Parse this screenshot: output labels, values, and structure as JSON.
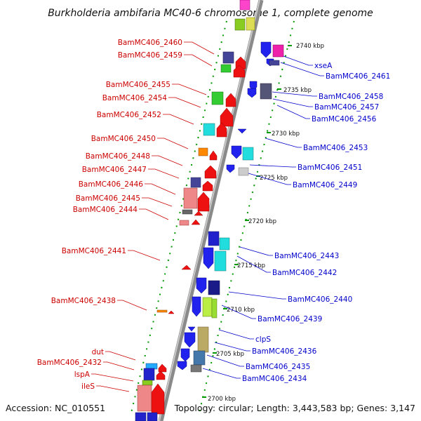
{
  "title": "Burkholderia ambifaria MC40-6 chromosome 1, complete genome",
  "accession": "Accession: NC_010551",
  "topology": "Topology: circular; Length: 3,443,583 bp; Genes: 3,147",
  "colors": {
    "forward_label": "#cc0000",
    "reverse_label": "#0000cc",
    "backbone": "#8a8a8a",
    "tick": "#009900"
  },
  "kbp_ticks": [
    "2740 kbp",
    "2735 kbp",
    "2730 kbp",
    "2725 kbp",
    "2720 kbp",
    "2715 kbp",
    "2710 kbp",
    "2705 kbp",
    "2700 kbp"
  ],
  "forward_genes": [
    "BamMC406_2460",
    "BamMC406_2459",
    "BamMC406_2455",
    "BamMC406_2454",
    "BamMC406_2452",
    "BamMC406_2450",
    "BamMC406_2448",
    "BamMC406_2447",
    "BamMC406_2446",
    "BamMC406_2445",
    "BamMC406_2444",
    "BamMC406_2441",
    "BamMC406_2438",
    "dut",
    "BamMC406_2432",
    "lspA",
    "ileS"
  ],
  "reverse_genes": [
    "xseA",
    "BamMC406_2461",
    "BamMC406_2458",
    "BamMC406_2457",
    "BamMC406_2456",
    "BamMC406_2453",
    "BamMC406_2451",
    "BamMC406_2449",
    "BamMC406_2443",
    "BamMC406_2442",
    "BamMC406_2440",
    "BamMC406_2439",
    "clpS",
    "BamMC406_2436",
    "BamMC406_2435",
    "BamMC406_2434"
  ]
}
